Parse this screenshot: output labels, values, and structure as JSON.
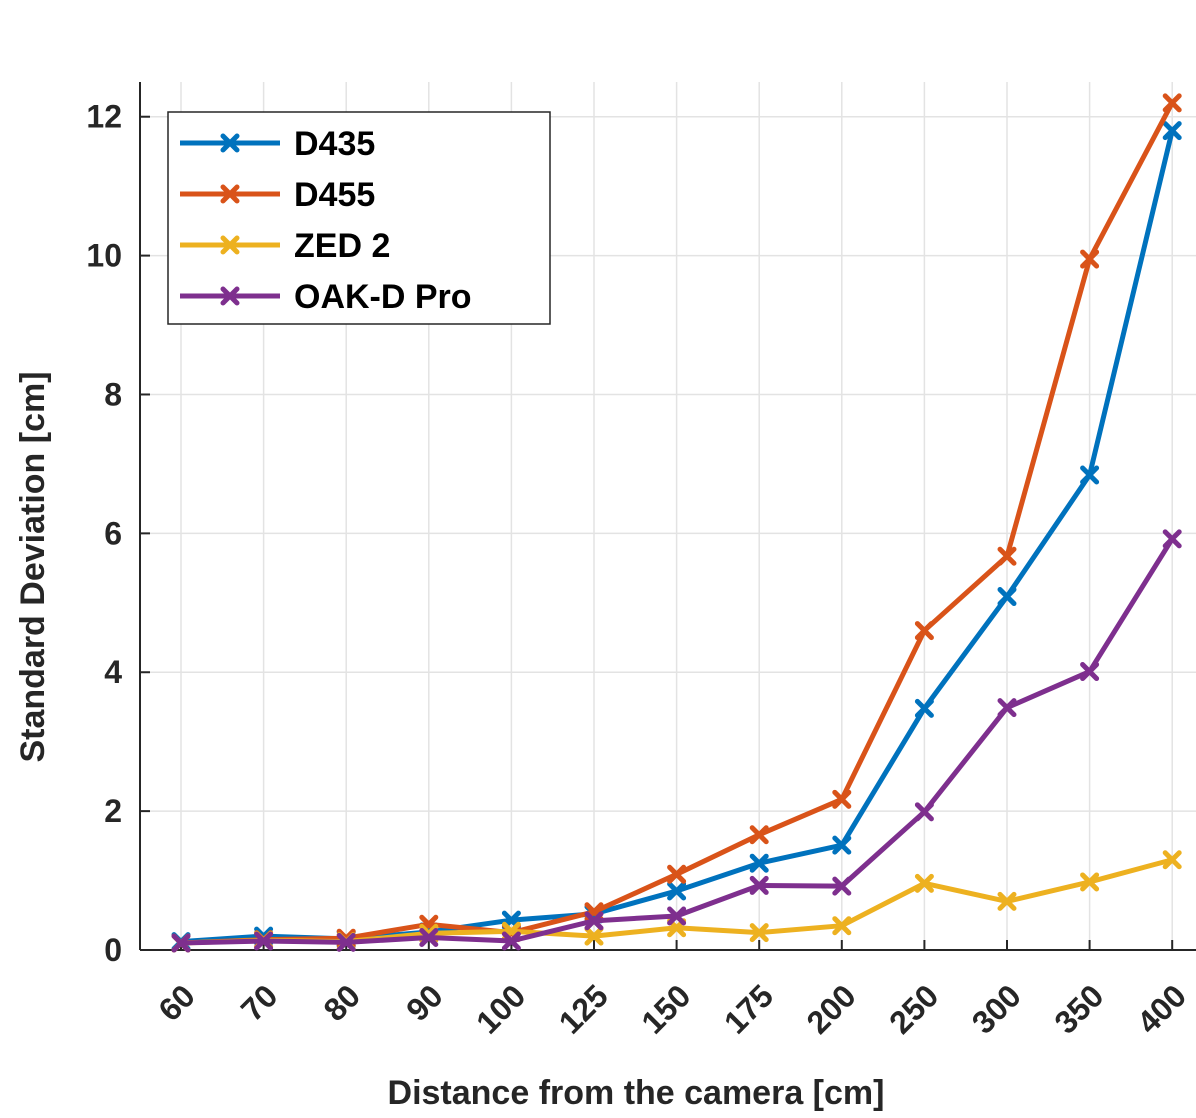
{
  "chart_data": {
    "type": "line",
    "title": "",
    "xlabel": "Distance from the camera [cm]",
    "ylabel": "Standard Deviation [cm]",
    "categories": [
      "60",
      "70",
      "80",
      "90",
      "100",
      "125",
      "150",
      "175",
      "200",
      "250",
      "300",
      "350",
      "400"
    ],
    "ylim": [
      0,
      12.5
    ],
    "yticks": [
      "0",
      "2",
      "4",
      "6",
      "8",
      "10",
      "12"
    ],
    "grid": true,
    "legend_position": "top-left",
    "marker": "x",
    "series": [
      {
        "name": "D435",
        "color": "#0072BD",
        "values": [
          0.12,
          0.2,
          0.16,
          0.26,
          0.43,
          0.52,
          0.85,
          1.25,
          1.51,
          3.48,
          5.09,
          6.84,
          11.8
        ]
      },
      {
        "name": "D455",
        "color": "#D95319",
        "values": [
          0.1,
          0.15,
          0.17,
          0.37,
          0.25,
          0.55,
          1.09,
          1.66,
          2.17,
          4.6,
          5.67,
          9.95,
          12.2
        ]
      },
      {
        "name": "ZED 2",
        "color": "#EDB120",
        "values": [
          0.1,
          0.14,
          0.12,
          0.24,
          0.27,
          0.2,
          0.32,
          0.25,
          0.35,
          0.96,
          0.7,
          0.98,
          1.3
        ]
      },
      {
        "name": "OAK-D Pro",
        "color": "#7E2F8E",
        "values": [
          0.1,
          0.13,
          0.11,
          0.18,
          0.13,
          0.42,
          0.49,
          0.93,
          0.92,
          1.99,
          3.49,
          4.01,
          5.92
        ]
      }
    ]
  }
}
